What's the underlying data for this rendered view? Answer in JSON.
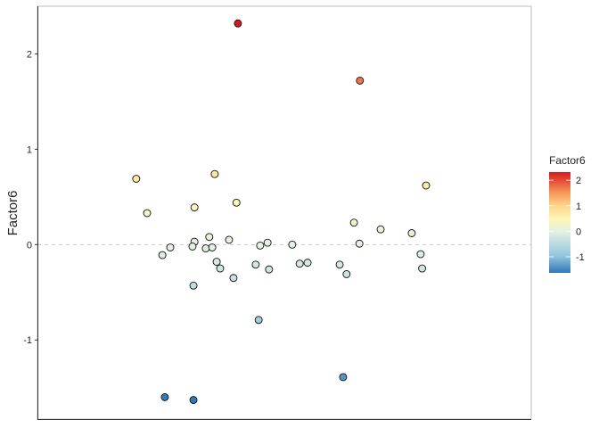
{
  "chart_data": {
    "type": "scatter",
    "title": "",
    "xlabel": "",
    "ylabel": "Factor6",
    "ylim": [
      -1.83,
      2.5
    ],
    "xlim": [
      0,
      100
    ],
    "y_ticks": [
      "2",
      "1",
      "0",
      "-1"
    ],
    "y_tick_values": [
      2,
      1,
      0,
      -1
    ],
    "x_ticks": [],
    "reference_line": {
      "y": 0,
      "style": "dashed",
      "color": "#c8c8c8"
    },
    "grid": false,
    "legend": {
      "title": "Factor6",
      "placement": "right",
      "type": "colorbar",
      "ticks": [
        "2",
        "1",
        "0",
        "-1"
      ],
      "tick_values": [
        2,
        1,
        0,
        -1
      ],
      "range": [
        -1.63,
        2.32
      ],
      "palette": [
        "#2f78b4",
        "#8fc3dd",
        "#e3f2e4",
        "#fdf5b3",
        "#fed58c",
        "#f7995a",
        "#d7191c"
      ],
      "palette_values": [
        -1.63,
        -1,
        0,
        0.5,
        1,
        1.5,
        2.32
      ]
    },
    "points": [
      {
        "x": 40.6,
        "y": 2.32
      },
      {
        "x": 65.3,
        "y": 1.72
      },
      {
        "x": 20.0,
        "y": 0.69
      },
      {
        "x": 35.9,
        "y": 0.74
      },
      {
        "x": 22.2,
        "y": 0.33
      },
      {
        "x": 31.8,
        "y": 0.39
      },
      {
        "x": 40.3,
        "y": 0.44
      },
      {
        "x": 78.7,
        "y": 0.62
      },
      {
        "x": 64.1,
        "y": 0.23
      },
      {
        "x": 69.5,
        "y": 0.16
      },
      {
        "x": 75.8,
        "y": 0.12
      },
      {
        "x": 65.2,
        "y": 0.01
      },
      {
        "x": 34.8,
        "y": 0.08
      },
      {
        "x": 31.8,
        "y": 0.03
      },
      {
        "x": 38.8,
        "y": 0.05
      },
      {
        "x": 31.4,
        "y": -0.02
      },
      {
        "x": 26.9,
        "y": -0.03
      },
      {
        "x": 34.1,
        "y": -0.04
      },
      {
        "x": 35.4,
        "y": -0.03
      },
      {
        "x": 45.1,
        "y": -0.01
      },
      {
        "x": 46.6,
        "y": 0.02
      },
      {
        "x": 51.6,
        "y": 0.0
      },
      {
        "x": 25.3,
        "y": -0.11
      },
      {
        "x": 36.3,
        "y": -0.18
      },
      {
        "x": 37.0,
        "y": -0.25
      },
      {
        "x": 44.2,
        "y": -0.21
      },
      {
        "x": 46.9,
        "y": -0.26
      },
      {
        "x": 53.1,
        "y": -0.2
      },
      {
        "x": 54.7,
        "y": -0.19
      },
      {
        "x": 61.2,
        "y": -0.21
      },
      {
        "x": 62.6,
        "y": -0.31
      },
      {
        "x": 77.6,
        "y": -0.1
      },
      {
        "x": 77.9,
        "y": -0.25
      },
      {
        "x": 39.7,
        "y": -0.35
      },
      {
        "x": 31.6,
        "y": -0.43
      },
      {
        "x": 44.8,
        "y": -0.79
      },
      {
        "x": 61.9,
        "y": -1.39
      },
      {
        "x": 25.8,
        "y": -1.6
      },
      {
        "x": 31.6,
        "y": -1.63
      }
    ]
  }
}
